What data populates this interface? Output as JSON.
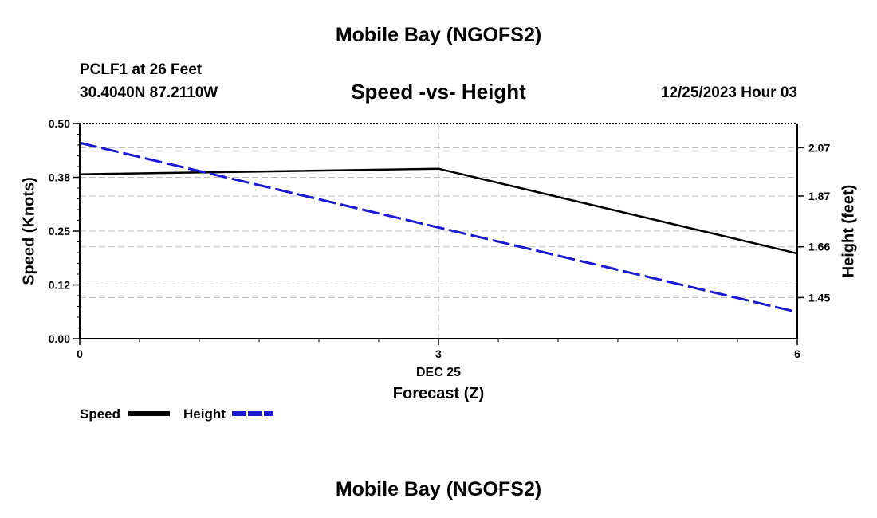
{
  "page": {
    "title": "Mobile Bay (NGOFS2)",
    "footer_title": "Mobile Bay (NGOFS2)",
    "station_line": "PCLF1 at 26 Feet",
    "coords_line": "30.4040N  87.2110W",
    "datetime": "12/25/2023 Hour 03"
  },
  "chart_data": {
    "type": "line",
    "title": "Speed -vs- Height",
    "xlabel": "Forecast (Z)",
    "xdate_label": "DEC 25",
    "x": [
      0,
      3,
      6
    ],
    "xticks": [
      "0",
      "3",
      "6"
    ],
    "xlim": [
      0,
      6
    ],
    "ylabel_left": "Speed (Knots)",
    "ylabel_right": "Height (feet)",
    "ylim_left": [
      0.0,
      0.5
    ],
    "yticks_left": [
      "0.00",
      "0.12",
      "0.25",
      "0.38",
      "0.50"
    ],
    "yticks_left_values": [
      0.0,
      0.125,
      0.25,
      0.375,
      0.5
    ],
    "ylim_right": [
      1.28,
      2.17
    ],
    "yticks_right": [
      "1.45",
      "1.66",
      "1.87",
      "2.07"
    ],
    "yticks_right_values": [
      1.45,
      1.66,
      1.87,
      2.07
    ],
    "series": [
      {
        "name": "Speed",
        "axis": "left",
        "color": "#000000",
        "style": "solid",
        "x": [
          0,
          3,
          6
        ],
        "values": [
          0.382,
          0.395,
          0.198
        ]
      },
      {
        "name": "Height",
        "axis": "right",
        "color": "#1a1ad0",
        "style": "dashed",
        "x": [
          0,
          6
        ],
        "values": [
          2.09,
          1.39
        ]
      }
    ],
    "grid": true
  }
}
